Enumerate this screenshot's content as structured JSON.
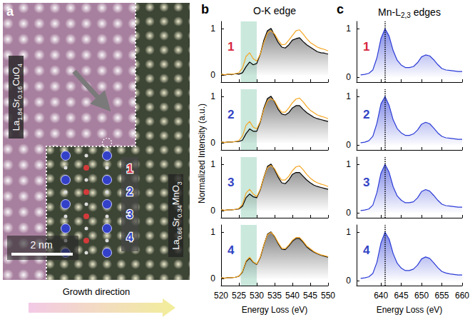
{
  "panels": {
    "a": {
      "letter": "a",
      "top_material": "La1.84Sr0.16CuO4",
      "bottom_material": "La0.66Sr0.34MnO3",
      "scale_bar": "2 nm",
      "arrow_label": "Growth direction",
      "layers": [
        {
          "text": "1",
          "color": "#d7263d"
        },
        {
          "text": "2",
          "color": "#3344c4"
        },
        {
          "text": "3",
          "color": "#3344c4"
        },
        {
          "text": "4",
          "color": "#3344c4"
        }
      ]
    },
    "b": {
      "letter": "b",
      "title": "O-K edge",
      "y_label": "Normalized Intensity (a.u.)",
      "x_label": "Energy Loss (eV)"
    },
    "c": {
      "letter": "c",
      "title": "Mn-L2,3 edges",
      "x_label": "Energy Loss (eV)"
    }
  },
  "chart_data": [
    {
      "type": "line",
      "panel": "b",
      "label": {
        "text": "1",
        "color": "#d7263d"
      },
      "tick_labels": "y",
      "x": [
        520,
        521,
        522,
        523,
        524,
        525,
        526,
        527,
        528,
        529,
        530,
        531,
        532,
        533,
        534,
        535,
        536,
        537,
        538,
        539,
        540,
        541,
        542,
        543,
        544,
        545,
        546,
        547,
        548,
        549,
        550
      ],
      "series": [
        {
          "type": "area",
          "color": "#000000",
          "values": [
            0.02,
            0.0,
            0.02,
            0.01,
            0.03,
            0.02,
            0.05,
            0.18,
            0.28,
            0.22,
            0.25,
            0.45,
            0.75,
            0.95,
            1.0,
            0.85,
            0.7,
            0.6,
            0.58,
            0.65,
            0.75,
            0.78,
            0.8,
            0.72,
            0.65,
            0.6,
            0.55,
            0.5,
            0.48,
            0.47,
            0.45
          ]
        },
        {
          "type": "line",
          "color": "#f5a623",
          "values": [
            0.02,
            0.01,
            0.02,
            0.02,
            0.03,
            0.05,
            0.15,
            0.4,
            0.48,
            0.35,
            0.3,
            0.45,
            0.7,
            0.9,
            0.95,
            0.88,
            0.75,
            0.65,
            0.66,
            0.75,
            0.85,
            0.95,
            0.97,
            0.88,
            0.78,
            0.7,
            0.65,
            0.6,
            0.57,
            0.55,
            0.52
          ]
        }
      ],
      "shaded_range": [
        525.5,
        530
      ],
      "xlim": [
        520,
        550
      ],
      "xticks": [
        520,
        525,
        530,
        535,
        540,
        545,
        550
      ],
      "ylim": [
        -0.15,
        1.15
      ],
      "yticks": [
        0,
        1
      ]
    },
    {
      "type": "line",
      "panel": "b",
      "label": {
        "text": "2",
        "color": "#3344c4"
      },
      "tick_labels": "y",
      "x": [
        520,
        521,
        522,
        523,
        524,
        525,
        526,
        527,
        528,
        529,
        530,
        531,
        532,
        533,
        534,
        535,
        536,
        537,
        538,
        539,
        540,
        541,
        542,
        543,
        544,
        545,
        546,
        547,
        548,
        549,
        550
      ],
      "series": [
        {
          "type": "area",
          "color": "#000000",
          "values": [
            0.02,
            0.01,
            0.02,
            0.02,
            0.03,
            0.03,
            0.06,
            0.2,
            0.3,
            0.25,
            0.25,
            0.45,
            0.75,
            0.95,
            1.0,
            0.88,
            0.72,
            0.62,
            0.6,
            0.65,
            0.75,
            0.8,
            0.8,
            0.72,
            0.65,
            0.6,
            0.55,
            0.52,
            0.5,
            0.48,
            0.46
          ]
        },
        {
          "type": "line",
          "color": "#f5a623",
          "values": [
            0.02,
            0.01,
            0.02,
            0.02,
            0.03,
            0.05,
            0.15,
            0.38,
            0.46,
            0.34,
            0.3,
            0.46,
            0.72,
            0.9,
            0.95,
            0.9,
            0.76,
            0.66,
            0.66,
            0.75,
            0.86,
            0.94,
            0.96,
            0.88,
            0.78,
            0.7,
            0.65,
            0.6,
            0.57,
            0.55,
            0.52
          ]
        }
      ],
      "shaded_range": [
        525.5,
        530
      ],
      "xlim": [
        520,
        550
      ],
      "xticks": [
        520,
        525,
        530,
        535,
        540,
        545,
        550
      ],
      "ylim": [
        -0.15,
        1.15
      ],
      "yticks": [
        0,
        1
      ]
    },
    {
      "type": "line",
      "panel": "b",
      "label": {
        "text": "3",
        "color": "#3344c4"
      },
      "tick_labels": "y",
      "x": [
        520,
        521,
        522,
        523,
        524,
        525,
        526,
        527,
        528,
        529,
        530,
        531,
        532,
        533,
        534,
        535,
        536,
        537,
        538,
        539,
        540,
        541,
        542,
        543,
        544,
        545,
        546,
        547,
        548,
        549,
        550
      ],
      "series": [
        {
          "type": "area",
          "color": "#000000",
          "values": [
            0.02,
            0.01,
            0.02,
            0.02,
            0.03,
            0.04,
            0.1,
            0.28,
            0.36,
            0.3,
            0.28,
            0.45,
            0.72,
            0.95,
            1.0,
            0.88,
            0.72,
            0.6,
            0.58,
            0.66,
            0.78,
            0.82,
            0.82,
            0.74,
            0.66,
            0.6,
            0.55,
            0.52,
            0.5,
            0.48,
            0.46
          ]
        },
        {
          "type": "line",
          "color": "#f5a623",
          "values": [
            0.02,
            0.01,
            0.02,
            0.02,
            0.03,
            0.05,
            0.14,
            0.38,
            0.46,
            0.36,
            0.3,
            0.46,
            0.72,
            0.92,
            0.97,
            0.9,
            0.76,
            0.66,
            0.66,
            0.74,
            0.86,
            0.94,
            0.96,
            0.88,
            0.78,
            0.7,
            0.64,
            0.6,
            0.57,
            0.55,
            0.52
          ]
        }
      ],
      "shaded_range": [
        525.5,
        530
      ],
      "xlim": [
        520,
        550
      ],
      "xticks": [
        520,
        525,
        530,
        535,
        540,
        545,
        550
      ],
      "ylim": [
        -0.15,
        1.15
      ],
      "yticks": [
        0,
        1
      ]
    },
    {
      "type": "line",
      "panel": "b",
      "label": {
        "text": "4",
        "color": "#3344c4"
      },
      "x": [
        520,
        521,
        522,
        523,
        524,
        525,
        526,
        527,
        528,
        529,
        530,
        531,
        532,
        533,
        534,
        535,
        536,
        537,
        538,
        539,
        540,
        541,
        542,
        543,
        544,
        545,
        546,
        547,
        548,
        549,
        550
      ],
      "series": [
        {
          "type": "area",
          "color": "#000000",
          "values": [
            0.02,
            0.01,
            0.02,
            0.02,
            0.03,
            0.05,
            0.14,
            0.36,
            0.44,
            0.35,
            0.3,
            0.45,
            0.72,
            0.95,
            1.0,
            0.9,
            0.75,
            0.63,
            0.62,
            0.7,
            0.8,
            0.86,
            0.86,
            0.78,
            0.68,
            0.62,
            0.57,
            0.53,
            0.5,
            0.48,
            0.46
          ]
        },
        {
          "type": "line",
          "color": "#f5a623",
          "values": [
            0.02,
            0.01,
            0.02,
            0.02,
            0.03,
            0.05,
            0.15,
            0.38,
            0.46,
            0.36,
            0.31,
            0.46,
            0.72,
            0.94,
            0.99,
            0.91,
            0.77,
            0.65,
            0.64,
            0.72,
            0.82,
            0.88,
            0.88,
            0.8,
            0.7,
            0.64,
            0.58,
            0.54,
            0.51,
            0.49,
            0.47
          ]
        }
      ],
      "shaded_range": [
        525.5,
        530
      ],
      "xlim": [
        520,
        550
      ],
      "xticks": [
        520,
        525,
        530,
        535,
        540,
        545,
        550
      ],
      "ylim": [
        -0.15,
        1.15
      ],
      "yticks": [
        0,
        1
      ]
    },
    {
      "type": "line",
      "panel": "c",
      "label": {
        "text": "1",
        "color": "#d7263d"
      },
      "tick_labels": "y",
      "x": [
        635,
        636,
        637,
        638,
        639,
        640,
        641,
        642,
        643,
        644,
        645,
        646,
        647,
        648,
        649,
        650,
        651,
        652,
        653,
        654,
        655,
        656,
        657,
        658,
        659,
        660
      ],
      "series": [
        {
          "type": "area",
          "color": "#2b3bd6",
          "values": [
            0.05,
            0.06,
            0.08,
            0.15,
            0.4,
            0.8,
            1.0,
            0.85,
            0.55,
            0.35,
            0.25,
            0.2,
            0.2,
            0.22,
            0.3,
            0.42,
            0.46,
            0.44,
            0.36,
            0.26,
            0.18,
            0.15,
            0.14,
            0.13,
            0.12,
            0.12
          ]
        }
      ],
      "reference_x": 641,
      "xlim": [
        634,
        660
      ],
      "xticks": [
        640,
        645,
        650,
        655,
        660
      ],
      "ylim": [
        -0.1,
        1.15
      ],
      "yticks": [
        0,
        1
      ]
    },
    {
      "type": "line",
      "panel": "c",
      "label": {
        "text": "2",
        "color": "#3344c4"
      },
      "tick_labels": "y",
      "x": [
        635,
        636,
        637,
        638,
        639,
        640,
        641,
        642,
        643,
        644,
        645,
        646,
        647,
        648,
        649,
        650,
        651,
        652,
        653,
        654,
        655,
        656,
        657,
        658,
        659,
        660
      ],
      "series": [
        {
          "type": "area",
          "color": "#2b3bd6",
          "values": [
            0.05,
            0.06,
            0.09,
            0.18,
            0.45,
            0.85,
            1.0,
            0.82,
            0.52,
            0.34,
            0.25,
            0.2,
            0.2,
            0.23,
            0.31,
            0.43,
            0.47,
            0.44,
            0.35,
            0.25,
            0.18,
            0.15,
            0.14,
            0.13,
            0.12,
            0.12
          ]
        }
      ],
      "reference_x": 641,
      "xlim": [
        634,
        660
      ],
      "xticks": [
        640,
        645,
        650,
        655,
        660
      ],
      "ylim": [
        -0.1,
        1.15
      ],
      "yticks": [
        0,
        1
      ]
    },
    {
      "type": "line",
      "panel": "c",
      "label": {
        "text": "3",
        "color": "#3344c4"
      },
      "tick_labels": "y",
      "x": [
        635,
        636,
        637,
        638,
        639,
        640,
        641,
        642,
        643,
        644,
        645,
        646,
        647,
        648,
        649,
        650,
        651,
        652,
        653,
        654,
        655,
        656,
        657,
        658,
        659,
        660
      ],
      "series": [
        {
          "type": "area",
          "color": "#2b3bd6",
          "values": [
            0.05,
            0.06,
            0.08,
            0.16,
            0.42,
            0.82,
            1.0,
            0.84,
            0.54,
            0.35,
            0.26,
            0.21,
            0.21,
            0.23,
            0.31,
            0.44,
            0.48,
            0.45,
            0.36,
            0.26,
            0.18,
            0.15,
            0.14,
            0.13,
            0.12,
            0.12
          ]
        }
      ],
      "reference_x": 641,
      "xlim": [
        634,
        660
      ],
      "xticks": [
        640,
        645,
        650,
        655,
        660
      ],
      "ylim": [
        -0.1,
        1.15
      ],
      "yticks": [
        0,
        1
      ]
    },
    {
      "type": "line",
      "panel": "c",
      "label": {
        "text": "4",
        "color": "#3344c4"
      },
      "x": [
        635,
        636,
        637,
        638,
        639,
        640,
        641,
        642,
        643,
        644,
        645,
        646,
        647,
        648,
        649,
        650,
        651,
        652,
        653,
        654,
        655,
        656,
        657,
        658,
        659,
        660
      ],
      "series": [
        {
          "type": "area",
          "color": "#2b3bd6",
          "values": [
            0.05,
            0.06,
            0.08,
            0.15,
            0.38,
            0.78,
            1.0,
            0.86,
            0.56,
            0.36,
            0.26,
            0.21,
            0.21,
            0.24,
            0.32,
            0.45,
            0.49,
            0.46,
            0.37,
            0.27,
            0.19,
            0.16,
            0.14,
            0.13,
            0.12,
            0.12
          ]
        }
      ],
      "reference_x": 641,
      "xlim": [
        634,
        660
      ],
      "xticks": [
        640,
        645,
        650,
        655,
        660
      ],
      "ylim": [
        -0.1,
        1.15
      ],
      "yticks": [
        0,
        1
      ]
    }
  ]
}
